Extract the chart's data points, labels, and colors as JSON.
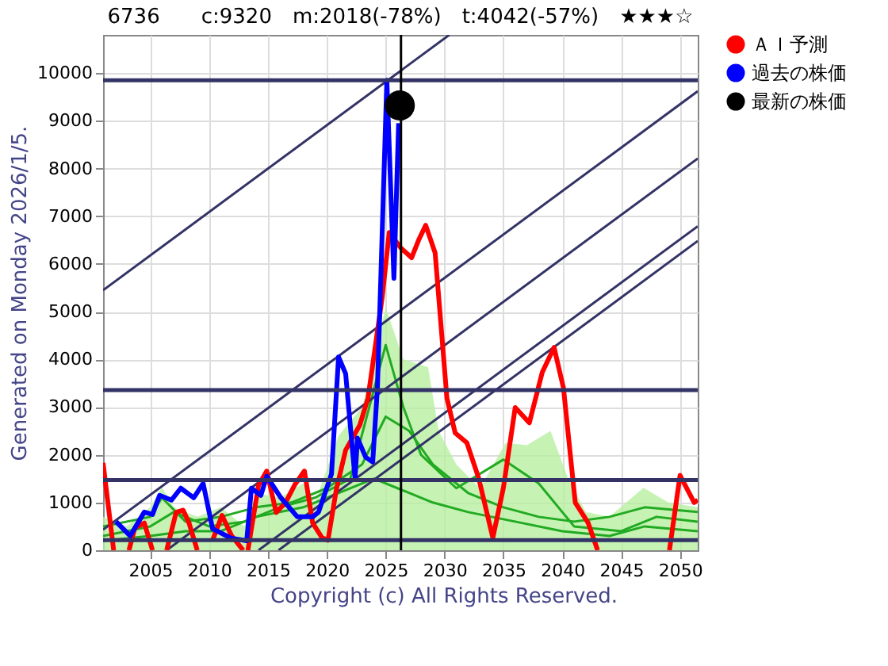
{
  "chart_data": {
    "type": "line",
    "title": "6736　　c:9320　m:2018(-78%)　t:4042(-57%)　★★★☆",
    "ylabel": "Generated on Monday 2026/1/5.",
    "annotations": [
      "Copyright (c) All Rights Reserved."
    ],
    "xlim": [
      2001,
      2051.5
    ],
    "xticks": [
      2005,
      2010,
      2015,
      2020,
      2025,
      2030,
      2035,
      2040,
      2045,
      2050
    ],
    "ylim": [
      0,
      10800
    ],
    "yticks": [
      0,
      1000,
      2000,
      3000,
      4000,
      5000,
      6000,
      7000,
      8000,
      9000,
      10000
    ],
    "grid": true,
    "legend": "right",
    "ref_lines": [
      {
        "axis": "y",
        "value": 9850,
        "color": "#333366"
      },
      {
        "axis": "y",
        "value": 3355,
        "color": "#333366"
      },
      {
        "axis": "y",
        "value": 1470,
        "color": "#333366"
      },
      {
        "axis": "y",
        "value": 210,
        "color": "#333366"
      },
      {
        "axis": "x",
        "value": 2026.3,
        "color": "#000000"
      }
    ],
    "series": [
      {
        "type": "area",
        "color": "#b8f0a0",
        "x": [
          2001,
          2003,
          2005,
          2006,
          2007,
          2009,
          2011,
          2013,
          2014,
          2016,
          2018,
          2019,
          2021,
          2023,
          2025,
          2026.5,
          2028.6,
          2029.5,
          2031,
          2033,
          2035.2,
          2037,
          2039,
          2040.5,
          2042,
          2044,
          2046.9,
          2049,
          2051.5
        ],
        "values": [
          700,
          500,
          900,
          1320,
          900,
          700,
          900,
          500,
          1200,
          1100,
          1400,
          1000,
          2400,
          3000,
          5090,
          4000,
          3840,
          2500,
          1800,
          1300,
          2250,
          2200,
          2500,
          1500,
          800,
          700,
          1310,
          1000,
          900
        ]
      },
      {
        "color": "#22aa22",
        "x": [
          2001,
          2005,
          2006,
          2008,
          2011,
          2014,
          2017,
          2020,
          2023,
          2025,
          2027,
          2029,
          2032,
          2035,
          2038,
          2041,
          2044,
          2047,
          2051.5
        ],
        "values": [
          500,
          700,
          1100,
          600,
          700,
          900,
          1000,
          1300,
          1800,
          2800,
          2500,
          1800,
          1200,
          900,
          700,
          600,
          700,
          900,
          800
        ]
      },
      {
        "color": "#22aa22",
        "x": [
          2001,
          2005,
          2007,
          2010,
          2013,
          2016,
          2019,
          2022,
          2025,
          2026.5,
          2028,
          2031,
          2035,
          2038,
          2041,
          2045,
          2048,
          2051.5
        ],
        "values": [
          300,
          500,
          800,
          500,
          600,
          900,
          1100,
          1500,
          4300,
          3000,
          2000,
          1300,
          1900,
          1400,
          500,
          400,
          700,
          600
        ]
      },
      {
        "color": "#22aa22",
        "x": [
          2001,
          2005,
          2008,
          2011,
          2014,
          2018,
          2021,
          2024,
          2026,
          2029,
          2032,
          2036,
          2040,
          2044,
          2047,
          2051.5
        ],
        "values": [
          200,
          300,
          400,
          400,
          700,
          900,
          1200,
          1500,
          1300,
          1000,
          800,
          600,
          400,
          300,
          500,
          400
        ]
      },
      {
        "type": "line",
        "color": "#333366",
        "x": [
          2001,
          2030.4
        ],
        "values": [
          5450,
          10800
        ]
      },
      {
        "type": "line",
        "color": "#333366",
        "x": [
          2001,
          2051.5
        ],
        "values": [
          430,
          9620
        ]
      },
      {
        "type": "line",
        "color": "#333366",
        "x": [
          2006.4,
          2051.5
        ],
        "values": [
          0,
          8210
        ]
      },
      {
        "type": "line",
        "color": "#333366",
        "x": [
          2014.2,
          2051.5
        ],
        "values": [
          0,
          6790
        ]
      },
      {
        "type": "line",
        "color": "#333366",
        "x": [
          2015.9,
          2051.5
        ],
        "values": [
          0,
          6480
        ]
      },
      {
        "name": "ＡＩ予測",
        "color": "#ff0000",
        "x": [
          2001,
          2001.9,
          2002.5,
          2003.2,
          2003.7,
          2004.5,
          2005.2,
          2005.8,
          2006.4,
          2007.2,
          2007.8,
          2008.3,
          2009.0,
          2009.6,
          2010.3,
          2011.1,
          2011.9,
          2012.9,
          2013.1,
          2013.3,
          2014.2,
          2014.9,
          2015.7,
          2016.5,
          2017.3,
          2018.1,
          2018.8,
          2019.6,
          2020.1,
          2020.8,
          2021.6,
          2022.8,
          2023.5,
          2024.7,
          2025.3,
          2026.3,
          2027.2,
          2027.8,
          2028.4,
          2029.2,
          2030.2,
          2030.9,
          2031.9,
          2032.9,
          2034.1,
          2035.0,
          2036.0,
          2037.2,
          2038.3,
          2039.3,
          2040.1,
          2041.1,
          2042.2,
          2043.0,
          2046,
          2049.1,
          2050.0,
          2051.2,
          2051.5
        ],
        "values": [
          1830,
          0,
          null,
          0,
          470,
          570,
          0,
          null,
          0,
          790,
          840,
          570,
          0,
          null,
          210,
          730,
          310,
          0,
          null,
          0,
          1360,
          1660,
          790,
          1000,
          1380,
          1660,
          570,
          260,
          210,
          1260,
          2100,
          2620,
          3190,
          5290,
          6660,
          6330,
          6130,
          6500,
          6810,
          6230,
          3190,
          2460,
          2250,
          1510,
          260,
          1310,
          2990,
          2670,
          3730,
          4250,
          3400,
          1000,
          570,
          0,
          null,
          0,
          1570,
          1000,
          1050
        ]
      },
      {
        "name": "過去の株価",
        "color": "#0000ff",
        "x": [
          2002.1,
          2003.3,
          2004.5,
          2005.2,
          2005.8,
          2006.8,
          2007.6,
          2008.7,
          2009.5,
          2010.3,
          2011.9,
          2013.2,
          2013.6,
          2014.4,
          2014.9,
          2015.3,
          2016.1,
          2017.5,
          2018.8,
          2019.3,
          2020.4,
          2021.0,
          2021.6,
          2022.4,
          2022.6,
          2023.3,
          2023.9,
          2024.3,
          2025.1,
          2025.7,
          2026.1
        ],
        "values": [
          600,
          300,
          800,
          750,
          1150,
          1050,
          1300,
          1100,
          1400,
          450,
          250,
          200,
          1300,
          1150,
          1550,
          1400,
          1100,
          700,
          700,
          800,
          1600,
          4050,
          3700,
          1500,
          2350,
          1950,
          1850,
          3400,
          9850,
          5700,
          8950
        ]
      },
      {
        "type": "scatter",
        "name": "最新の株価",
        "color": "#000000",
        "x": [
          2026.2
        ],
        "values": [
          9320
        ]
      }
    ]
  }
}
